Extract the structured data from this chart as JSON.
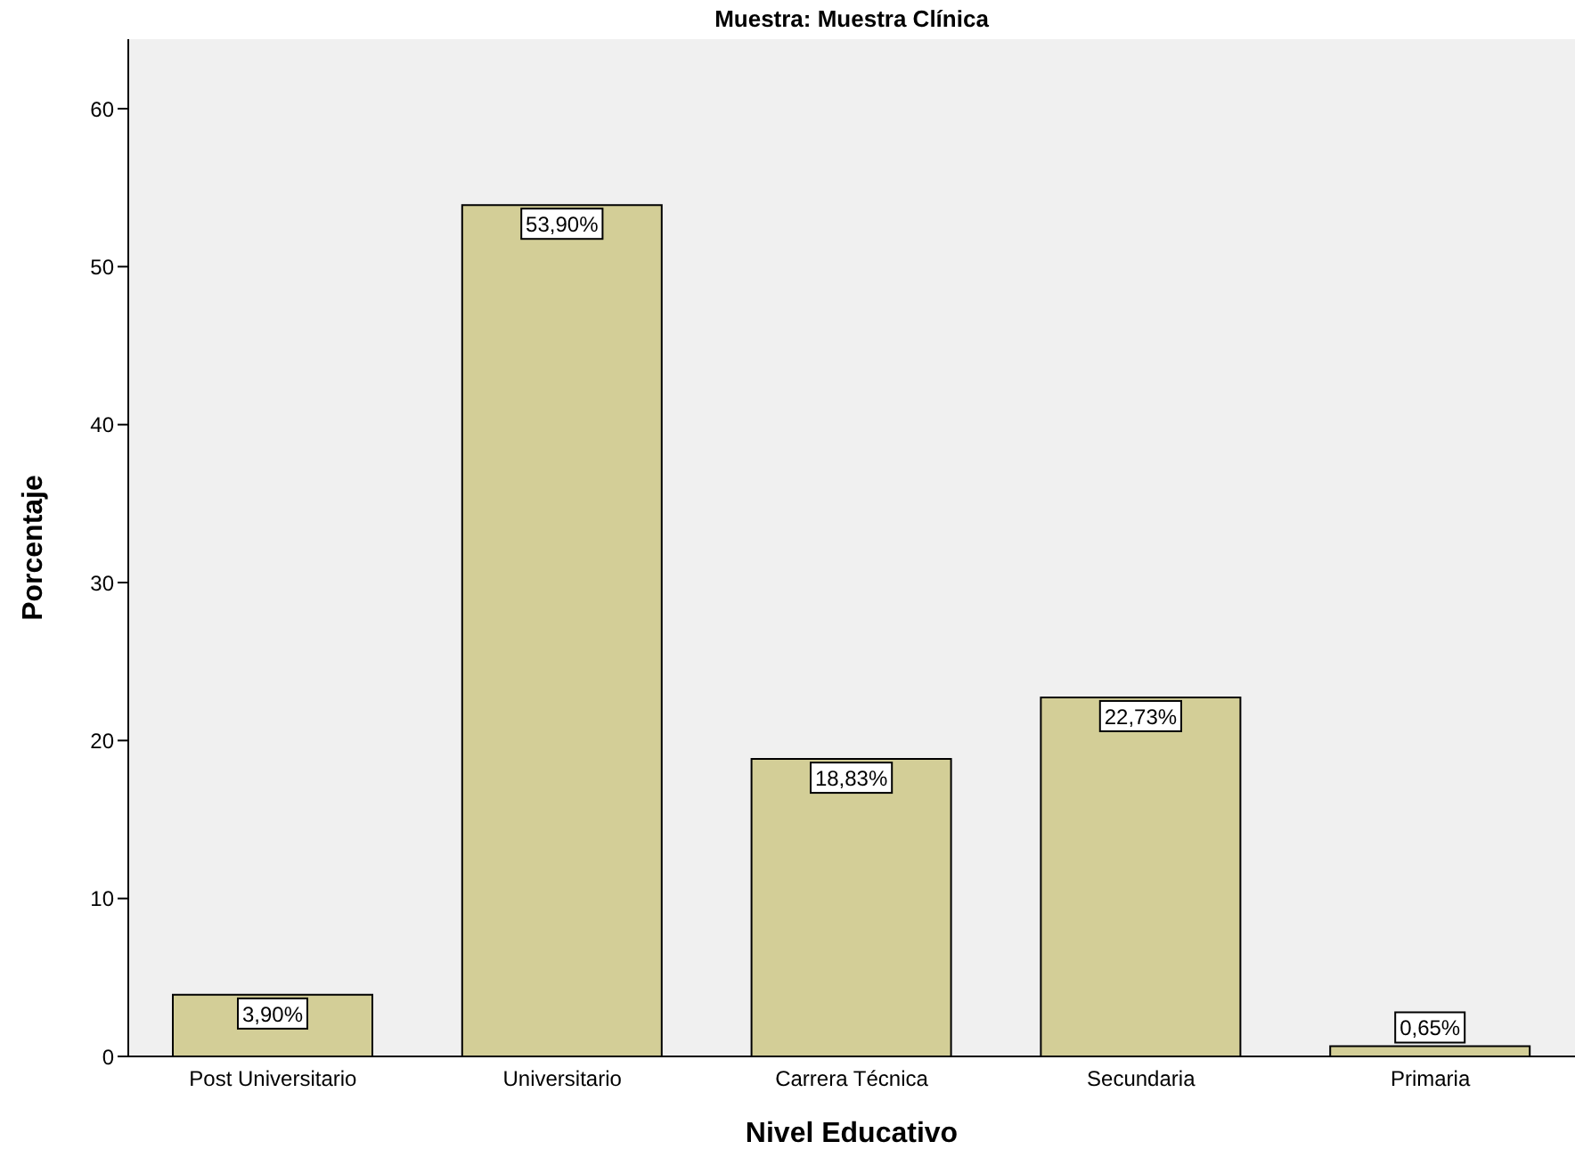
{
  "chart_data": {
    "type": "bar",
    "title": "Muestra: Muestra Clínica",
    "xlabel": "Nivel Educativo",
    "ylabel": "Porcentaje",
    "categories": [
      "Post Universitario",
      "Universitario",
      "Carrera Técnica",
      "Secundaria",
      "Primaria"
    ],
    "values": [
      3.9,
      53.9,
      18.83,
      22.73,
      0.65
    ],
    "value_labels": [
      "3,90%",
      "53,90%",
      "18,83%",
      "22,73%",
      "0,65%"
    ],
    "color": "#d3ce97",
    "ylim": [
      0,
      64.4
    ],
    "yticks": [
      0,
      10,
      20,
      30,
      40,
      50,
      60
    ],
    "grid": false
  }
}
